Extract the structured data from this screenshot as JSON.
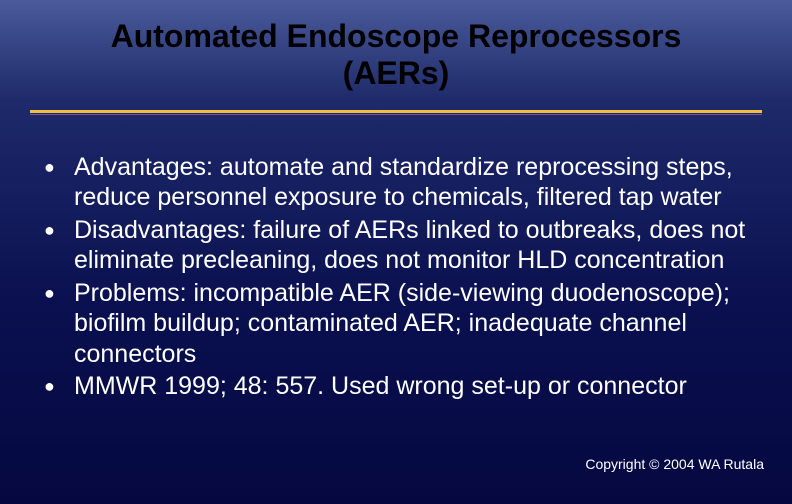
{
  "slide": {
    "title_line1": "Automated Endoscope Reprocessors",
    "title_line2": "(AERs)",
    "title_color": "#000000",
    "title_fontsize": 32,
    "divider_primary_color": "#f0c040",
    "divider_secondary_color": "#8050a0",
    "background_gradient": [
      "#4a5a9a",
      "#1e2a6a",
      "#0a1050",
      "#050840"
    ],
    "body_text_color": "#ffffff",
    "body_fontsize": 25,
    "bullet_glyph": "●",
    "bullets": [
      "Advantages: automate and standardize reprocessing steps, reduce personnel exposure to chemicals, filtered tap water",
      "Disadvantages: failure of AERs linked to outbreaks, does not eliminate precleaning, does not monitor HLD concentration",
      "Problems: incompatible AER (side-viewing duodenoscope); biofilm buildup; contaminated AER; inadequate channel connectors",
      "MMWR 1999; 48: 557. Used wrong set-up or connector"
    ],
    "copyright": "Copyright © 2004 WA Rutala",
    "copyright_fontsize": 14
  }
}
